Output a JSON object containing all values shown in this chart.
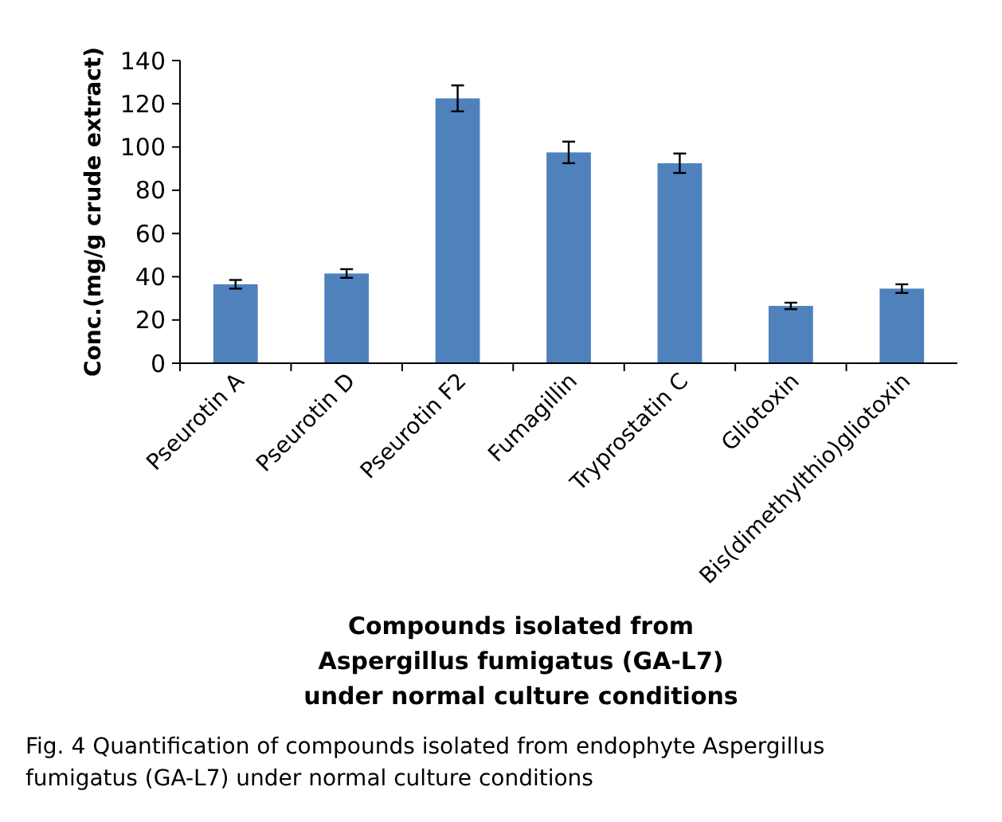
{
  "chart_data": {
    "type": "bar",
    "ylabel": "Conc.(mg/g crude extract)",
    "xlabel": "Compounds isolated from Aspergillus fumigatus (GA-L7) under normal culture conditions",
    "categories": [
      "Pseurotin A",
      "Pseurotin D",
      "Pseurotin F2",
      "Fumagillin",
      "Tryprostatin C",
      "Gliotoxin",
      "Bis(dimethylthio)gliotoxin"
    ],
    "values": [
      36.5,
      41.5,
      122.5,
      97.5,
      92.5,
      26.5,
      34.5
    ],
    "errors": [
      2,
      2,
      6,
      5,
      4.5,
      1.5,
      2
    ],
    "color": "#4f81bd",
    "ylim": [
      0,
      140
    ],
    "yticks": [
      0,
      20,
      40,
      60,
      80,
      100,
      120,
      140
    ],
    "grid": false,
    "annotations": [
      "Fig. 4 Quantification of compounds isolated from endophyte Aspergillus fumigatus (GA-L7) under normal culture conditions"
    ]
  }
}
